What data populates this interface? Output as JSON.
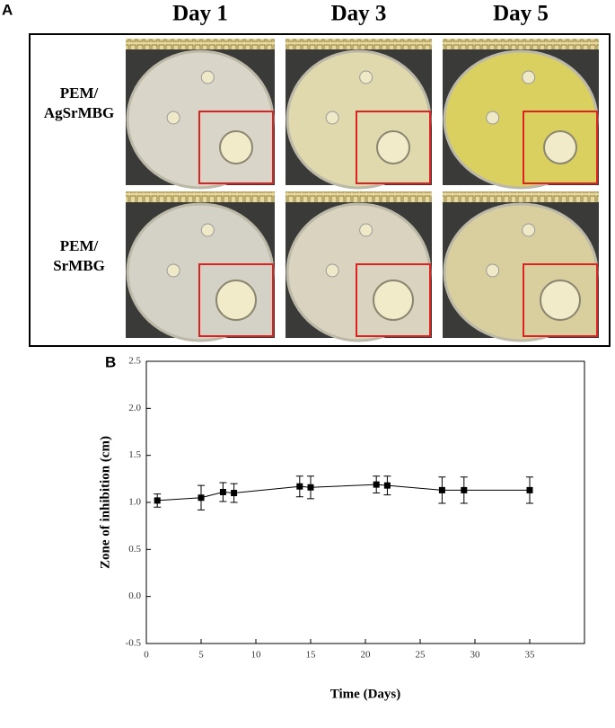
{
  "panel_a": {
    "label": "A",
    "columns": [
      "Day 1",
      "Day 3",
      "Day 5"
    ],
    "rows": [
      [
        "PEM/",
        "AgSrMBG"
      ],
      [
        "PEM/",
        "SrMBG"
      ]
    ]
  },
  "panel_b": {
    "label": "B"
  },
  "chart_data": {
    "type": "line",
    "x_label": "Time (Days)",
    "y_label": "Zone of inhibition (cm)",
    "x": [
      1,
      5,
      7,
      8,
      14,
      15,
      21,
      22,
      27,
      29,
      35
    ],
    "values": [
      1.02,
      1.05,
      1.11,
      1.1,
      1.17,
      1.16,
      1.19,
      1.18,
      1.13,
      1.13,
      1.13
    ],
    "errors": [
      0.07,
      0.13,
      0.1,
      0.1,
      0.11,
      0.12,
      0.09,
      0.1,
      0.14,
      0.14,
      0.14
    ],
    "color": "#000000",
    "xlim": [
      0,
      40
    ],
    "xticks": [
      0,
      5,
      10,
      15,
      20,
      25,
      30,
      35
    ],
    "ylim": [
      -0.5,
      2.5
    ],
    "yticks": [
      -0.5,
      {
        "value": 0,
        "label": "0.0"
      },
      0.5,
      {
        "value": 1,
        "label": "1.0"
      },
      1.5,
      {
        "value": 2,
        "label": "2.0"
      },
      2.5
    ]
  }
}
